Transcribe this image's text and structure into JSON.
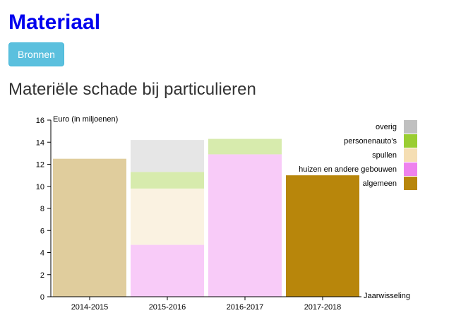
{
  "page": {
    "title": "Materiaal",
    "sources_button": "Bronnen",
    "section_title": "Materiële schade bij particulieren"
  },
  "chart_data": {
    "type": "bar",
    "ylabel": "Euro (in miljoenen)",
    "xlabel": "Jaarwisseling",
    "categories": [
      "2014-2015",
      "2015-2016",
      "2016-2017",
      "2017-2018"
    ],
    "ylim": [
      0,
      16
    ],
    "yticks": [
      0,
      2,
      4,
      6,
      8,
      10,
      12,
      14,
      16
    ],
    "legend_position": "top-right",
    "series": [
      {
        "name": "algemeen",
        "color": "#b8860b",
        "values": [
          12.5,
          0,
          0,
          11.0
        ]
      },
      {
        "name": "huizen en andere gebouwen",
        "color": "#ee82ee",
        "values": [
          0,
          4.7,
          12.9,
          0
        ]
      },
      {
        "name": "spullen",
        "color": "#f5deb3",
        "values": [
          0,
          5.1,
          0,
          0
        ]
      },
      {
        "name": "personenauto's",
        "color": "#9acd32",
        "values": [
          0,
          1.5,
          1.4,
          0
        ]
      },
      {
        "name": "overig",
        "color": "#c0c0c0",
        "values": [
          0,
          2.9,
          0,
          0
        ]
      }
    ],
    "bar_colors": [
      [
        "#e0cd9d",
        null,
        null,
        null,
        null
      ],
      [
        null,
        "#f8cbf8",
        "#faf2e1",
        "#d7ebad",
        "#e6e6e6"
      ],
      [
        null,
        "#f8cbf8",
        null,
        "#d7ebad",
        null
      ],
      [
        "#b8860b",
        null,
        null,
        null,
        null
      ]
    ]
  }
}
